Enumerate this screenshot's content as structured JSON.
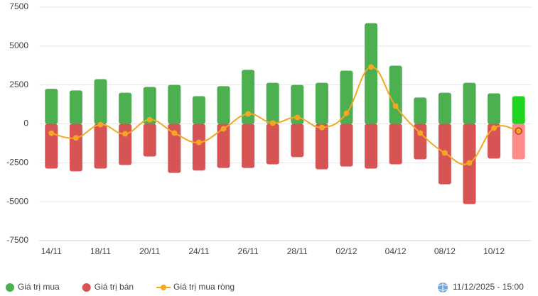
{
  "chart_data": {
    "type": "bar-line",
    "categories": [
      "14/11",
      null,
      "18/11",
      null,
      "20/11",
      null,
      "24/11",
      null,
      "26/11",
      null,
      "28/11",
      null,
      "02/12",
      null,
      "04/12",
      null,
      "08/12",
      null,
      "10/12",
      null
    ],
    "series": [
      {
        "name": "Giá trị mua",
        "type": "bar",
        "color": "#4caf50",
        "highlight_color": "#1ed41e",
        "values": [
          2250,
          2150,
          2870,
          2000,
          2370,
          2500,
          1780,
          2420,
          3470,
          2640,
          2500,
          2640,
          3420,
          6470,
          3740,
          1690,
          2000,
          2640,
          1960,
          1780
        ]
      },
      {
        "name": "Giá trị bán",
        "type": "bar",
        "color": "#d65454",
        "highlight_color": "#ff8a8a",
        "values": [
          -2870,
          -3050,
          -2870,
          -2640,
          -2100,
          -3150,
          -3000,
          -2830,
          -2830,
          -2600,
          -2140,
          -2920,
          -2740,
          -2870,
          -2600,
          -2280,
          -3880,
          -5150,
          -2230,
          -2280
        ]
      },
      {
        "name": "Giá trị mua ròng",
        "type": "line",
        "color": "#f5a623",
        "values": [
          -600,
          -900,
          -50,
          -640,
          270,
          -590,
          -1190,
          -320,
          640,
          50,
          410,
          -230,
          680,
          3650,
          1140,
          -590,
          -1870,
          -2510,
          -270,
          -460
        ]
      }
    ],
    "ylim": [
      -7500,
      7500
    ],
    "yticks": [
      -7500,
      -5000,
      -2500,
      0,
      2500,
      5000,
      7500
    ],
    "grid": true,
    "legend": "bottom"
  },
  "timestamp": "11/12/2025 - 15:00"
}
